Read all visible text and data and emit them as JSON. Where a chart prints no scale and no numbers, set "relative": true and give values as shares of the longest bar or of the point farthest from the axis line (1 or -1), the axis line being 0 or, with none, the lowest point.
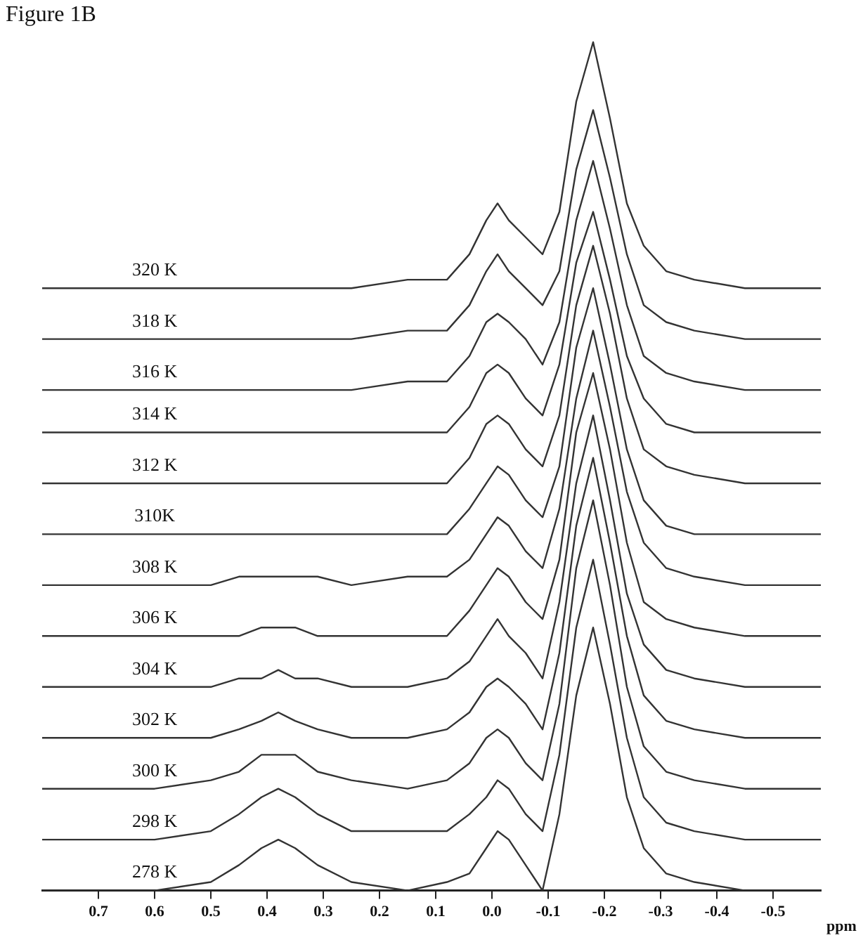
{
  "chart_data": {
    "type": "line",
    "title": "Figure 1B",
    "xlabel": "ppm",
    "relative": true,
    "legend": false,
    "grid": false,
    "marker": "none",
    "line_style": "solid",
    "tick_labels": "x",
    "xlim": [
      0.8,
      -0.585
    ],
    "xticks": [
      0.7,
      0.6,
      0.5,
      0.4,
      0.3,
      0.2,
      0.1,
      {
        "value": 0,
        "label": "0.0"
      },
      -0.1,
      -0.2,
      -0.3,
      -0.4,
      -0.5
    ],
    "x": [
      0.8,
      0.7,
      0.6,
      0.5,
      0.45,
      0.41,
      0.38,
      0.35,
      0.31,
      0.25,
      0.15,
      0.08,
      0.04,
      0.01,
      -0.01,
      -0.03,
      -0.06,
      -0.09,
      -0.12,
      -0.15,
      -0.18,
      -0.21,
      -0.24,
      -0.27,
      -0.31,
      -0.36,
      -0.45,
      -0.52,
      -0.585
    ],
    "series": [
      {
        "name": "278 K",
        "color": "#333333",
        "values": [
          0,
          0,
          0,
          0.01,
          0.03,
          0.05,
          0.06,
          0.05,
          0.03,
          0.01,
          0,
          0.01,
          0.02,
          0.05,
          0.07,
          0.06,
          0.03,
          0,
          0.09,
          0.23,
          0.31,
          0.22,
          0.11,
          0.05,
          0.02,
          0.01,
          0,
          0,
          0
        ]
      },
      {
        "name": "298 K",
        "color": "#333333",
        "values": [
          0.06,
          0.06,
          0.06,
          0.07,
          0.09,
          0.11,
          0.12,
          0.11,
          0.09,
          0.07,
          0.07,
          0.07,
          0.09,
          0.11,
          0.13,
          0.12,
          0.09,
          0.07,
          0.16,
          0.31,
          0.39,
          0.29,
          0.18,
          0.11,
          0.08,
          0.07,
          0.06,
          0.06,
          0.06
        ]
      },
      {
        "name": "300 K",
        "color": "#333333",
        "values": [
          0.12,
          0.12,
          0.12,
          0.13,
          0.14,
          0.16,
          0.16,
          0.16,
          0.14,
          0.13,
          0.12,
          0.13,
          0.15,
          0.18,
          0.19,
          0.18,
          0.15,
          0.13,
          0.22,
          0.38,
          0.46,
          0.36,
          0.24,
          0.17,
          0.14,
          0.13,
          0.12,
          0.12,
          0.12
        ]
      },
      {
        "name": "302 K",
        "color": "#333333",
        "values": [
          0.18,
          0.18,
          0.18,
          0.18,
          0.19,
          0.2,
          0.21,
          0.2,
          0.19,
          0.18,
          0.18,
          0.19,
          0.21,
          0.24,
          0.25,
          0.24,
          0.22,
          0.19,
          0.28,
          0.43,
          0.51,
          0.41,
          0.3,
          0.23,
          0.2,
          0.19,
          0.18,
          0.18,
          0.18
        ]
      },
      {
        "name": "304 K",
        "color": "#333333",
        "values": [
          0.24,
          0.24,
          0.24,
          0.24,
          0.25,
          0.25,
          0.26,
          0.25,
          0.25,
          0.24,
          0.24,
          0.25,
          0.27,
          0.3,
          0.32,
          0.3,
          0.28,
          0.25,
          0.34,
          0.48,
          0.56,
          0.46,
          0.35,
          0.29,
          0.26,
          0.25,
          0.24,
          0.24,
          0.24
        ]
      },
      {
        "name": "306 K",
        "color": "#333333",
        "values": [
          0.3,
          0.3,
          0.3,
          0.3,
          0.3,
          0.31,
          0.31,
          0.31,
          0.3,
          0.3,
          0.3,
          0.3,
          0.33,
          0.36,
          0.38,
          0.37,
          0.34,
          0.32,
          0.39,
          0.54,
          0.61,
          0.52,
          0.41,
          0.34,
          0.32,
          0.31,
          0.3,
          0.3,
          0.3
        ]
      },
      {
        "name": "308 K",
        "color": "#333333",
        "values": [
          0.36,
          0.36,
          0.36,
          0.36,
          0.37,
          0.37,
          0.37,
          0.37,
          0.37,
          0.36,
          0.37,
          0.37,
          0.39,
          0.42,
          0.44,
          0.43,
          0.4,
          0.38,
          0.45,
          0.58,
          0.66,
          0.57,
          0.47,
          0.41,
          0.38,
          0.37,
          0.36,
          0.36,
          0.36
        ]
      },
      {
        "name": "310K",
        "color": "#333333",
        "values": [
          0.42,
          0.42,
          0.42,
          0.42,
          0.42,
          0.42,
          0.42,
          0.42,
          0.42,
          0.42,
          0.42,
          0.42,
          0.45,
          0.48,
          0.5,
          0.49,
          0.46,
          0.44,
          0.5,
          0.64,
          0.71,
          0.62,
          0.52,
          0.46,
          0.43,
          0.42,
          0.42,
          0.42,
          0.42
        ]
      },
      {
        "name": "312 K",
        "color": "#333333",
        "values": [
          0.48,
          0.48,
          0.48,
          0.48,
          0.48,
          0.48,
          0.48,
          0.48,
          0.48,
          0.48,
          0.48,
          0.48,
          0.51,
          0.55,
          0.56,
          0.55,
          0.52,
          0.5,
          0.56,
          0.69,
          0.76,
          0.68,
          0.58,
          0.52,
          0.5,
          0.49,
          0.48,
          0.48,
          0.48
        ]
      },
      {
        "name": "314 K",
        "color": "#333333",
        "values": [
          0.54,
          0.54,
          0.54,
          0.54,
          0.54,
          0.54,
          0.54,
          0.54,
          0.54,
          0.54,
          0.54,
          0.54,
          0.57,
          0.61,
          0.62,
          0.61,
          0.58,
          0.56,
          0.62,
          0.74,
          0.8,
          0.72,
          0.63,
          0.58,
          0.55,
          0.54,
          0.54,
          0.54,
          0.54
        ]
      },
      {
        "name": "316 K",
        "color": "#333333",
        "values": [
          0.59,
          0.59,
          0.59,
          0.59,
          0.59,
          0.59,
          0.59,
          0.59,
          0.59,
          0.59,
          0.6,
          0.6,
          0.63,
          0.67,
          0.68,
          0.67,
          0.65,
          0.62,
          0.67,
          0.79,
          0.86,
          0.78,
          0.69,
          0.63,
          0.61,
          0.6,
          0.59,
          0.59,
          0.59
        ]
      },
      {
        "name": "318 K",
        "color": "#333333",
        "values": [
          0.65,
          0.65,
          0.65,
          0.65,
          0.65,
          0.65,
          0.65,
          0.65,
          0.65,
          0.65,
          0.66,
          0.66,
          0.69,
          0.73,
          0.75,
          0.73,
          0.71,
          0.69,
          0.73,
          0.85,
          0.92,
          0.84,
          0.75,
          0.69,
          0.67,
          0.66,
          0.65,
          0.65,
          0.65
        ]
      },
      {
        "name": "320 K",
        "color": "#333333",
        "values": [
          0.71,
          0.71,
          0.71,
          0.71,
          0.71,
          0.71,
          0.71,
          0.71,
          0.71,
          0.71,
          0.72,
          0.72,
          0.75,
          0.79,
          0.81,
          0.79,
          0.77,
          0.75,
          0.8,
          0.93,
          1,
          0.91,
          0.81,
          0.76,
          0.73,
          0.72,
          0.71,
          0.71,
          0.71
        ]
      }
    ]
  }
}
